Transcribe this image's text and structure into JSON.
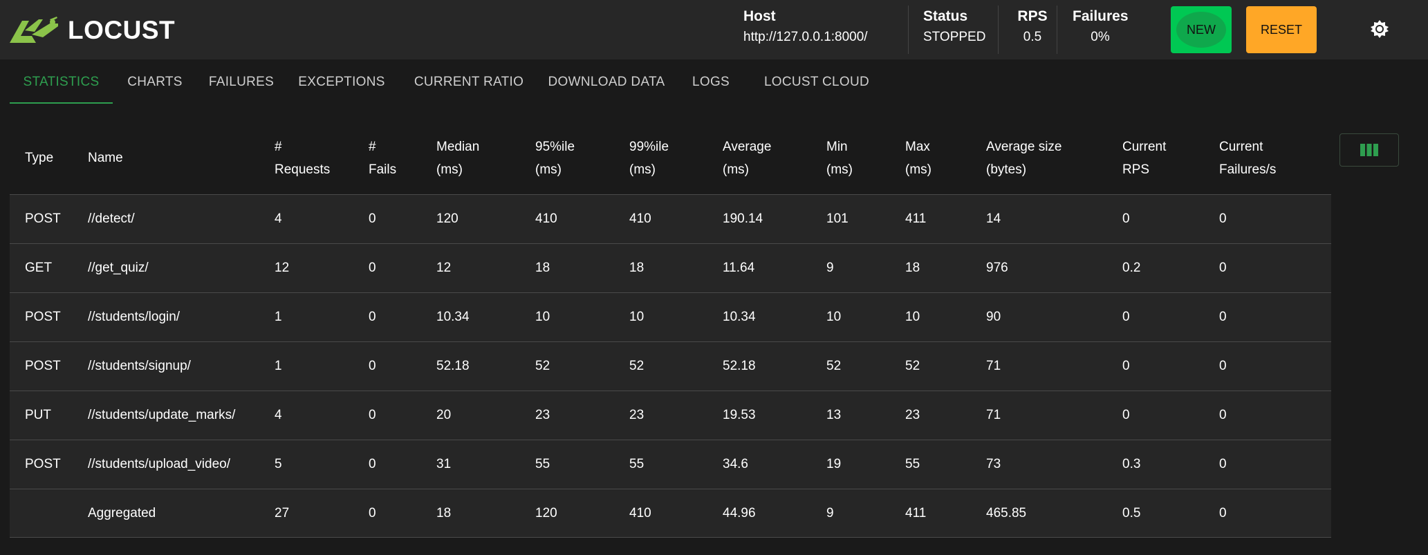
{
  "app": {
    "logo_text": "LOCUST"
  },
  "header": {
    "host_label": "Host",
    "host_value": "http://127.0.0.1:8000/",
    "status_label": "Status",
    "status_value": "STOPPED",
    "rps_label": "RPS",
    "rps_value": "0.5",
    "failures_label": "Failures",
    "failures_value": "0%",
    "new_label": "NEW",
    "reset_label": "RESET",
    "theme_icon": "sun-icon"
  },
  "tabs": [
    {
      "label": "STATISTICS",
      "active": true
    },
    {
      "label": "CHARTS",
      "active": false
    },
    {
      "label": "FAILURES",
      "active": false
    },
    {
      "label": "EXCEPTIONS",
      "active": false
    },
    {
      "label": "CURRENT RATIO",
      "active": false
    },
    {
      "label": "DOWNLOAD DATA",
      "active": false
    },
    {
      "label": "LOGS",
      "active": false
    },
    {
      "label": "LOCUST CLOUD",
      "active": false
    }
  ],
  "table": {
    "headers": [
      "Type",
      "Name",
      "#\nRequests",
      "#\nFails",
      "Median\n(ms)",
      "95%ile\n(ms)",
      "99%ile\n(ms)",
      "Average\n(ms)",
      "Min\n(ms)",
      "Max\n(ms)",
      "Average size\n(bytes)",
      "Current\nRPS",
      "Current\nFailures/s"
    ],
    "rows": [
      [
        "POST",
        "//detect/",
        "4",
        "0",
        "120",
        "410",
        "410",
        "190.14",
        "101",
        "411",
        "14",
        "0",
        "0"
      ],
      [
        "GET",
        "//get_quiz/",
        "12",
        "0",
        "12",
        "18",
        "18",
        "11.64",
        "9",
        "18",
        "976",
        "0.2",
        "0"
      ],
      [
        "POST",
        "//students/login/",
        "1",
        "0",
        "10.34",
        "10",
        "10",
        "10.34",
        "10",
        "10",
        "90",
        "0",
        "0"
      ],
      [
        "POST",
        "//students/signup/",
        "1",
        "0",
        "52.18",
        "52",
        "52",
        "52.18",
        "52",
        "52",
        "71",
        "0",
        "0"
      ],
      [
        "PUT",
        "//students/update_marks/",
        "4",
        "0",
        "20",
        "23",
        "23",
        "19.53",
        "13",
        "23",
        "71",
        "0",
        "0"
      ],
      [
        "POST",
        "//students/upload_video/",
        "5",
        "0",
        "31",
        "55",
        "55",
        "34.6",
        "19",
        "55",
        "73",
        "0.3",
        "0"
      ],
      [
        "",
        "Aggregated",
        "27",
        "0",
        "18",
        "120",
        "410",
        "44.96",
        "9",
        "411",
        "465.85",
        "0.5",
        "0"
      ]
    ],
    "column_picker_icon": "columns-icon"
  },
  "colors": {
    "accent_green": "#2e9e4f",
    "new_button": "#00c853",
    "reset_button": "#ffa726",
    "logo_green": "#8bc34a"
  }
}
